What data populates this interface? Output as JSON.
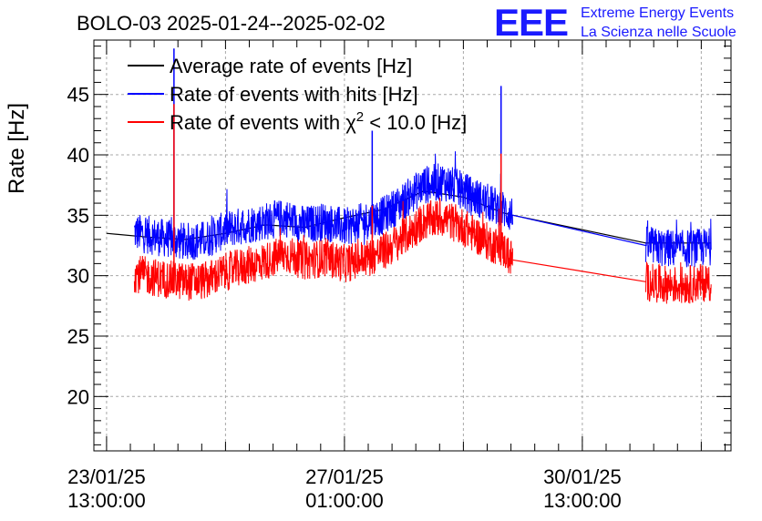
{
  "chart_data": {
    "type": "line",
    "title": "BOLO-03 2025-01-24--2025-02-02",
    "ylabel": "Rate [Hz]",
    "xlabel": "",
    "ylim": [
      15.5,
      49.5
    ],
    "yticks": [
      20,
      25,
      30,
      35,
      40,
      45
    ],
    "xlim_hours": [
      -3.2,
      157.5
    ],
    "xticks": [
      {
        "hour": 0,
        "date": "23/01/25",
        "time": "13:00:00"
      },
      {
        "hour": 60,
        "date": "27/01/25",
        "time": "01:00:00"
      },
      {
        "hour": 120,
        "date": "30/01/25",
        "time": "13:00:00"
      }
    ],
    "grid": true,
    "legend_position": "top-left",
    "series": [
      {
        "name": "Average rate of events [Hz]",
        "color": "#000000",
        "x_hours": [
          0.0,
          10.0,
          20.0,
          30.0,
          40.0,
          50.0,
          60.0,
          70.0,
          80.0,
          90.0,
          100.0,
          102.5,
          136.0,
          152.5
        ],
        "values": [
          33.5,
          33.2,
          33.0,
          33.5,
          34.2,
          34.0,
          34.8,
          35.5,
          37.0,
          36.5,
          35.2,
          35.0,
          32.7,
          32.7
        ]
      },
      {
        "name": "Rate of events with hits [Hz]",
        "color": "#0000ff",
        "x_hours": [
          7,
          13,
          20,
          25,
          30,
          35,
          40,
          45,
          50,
          55,
          60,
          65,
          70,
          75,
          80,
          85,
          90,
          95,
          100,
          102.5,
          136,
          140,
          145,
          152.5
        ],
        "values": [
          33.6,
          33.2,
          32.8,
          33.0,
          33.8,
          34.2,
          34.5,
          34.8,
          34.2,
          34.5,
          34.0,
          34.5,
          35.0,
          36.2,
          37.5,
          37.8,
          37.0,
          36.2,
          35.5,
          35.0,
          32.5,
          32.3,
          32.2,
          32.4
        ],
        "spikes": [
          {
            "hour": 17.0,
            "value": 48.8
          },
          {
            "hour": 67.0,
            "value": 42.0
          },
          {
            "hour": 99.5,
            "value": 45.7
          }
        ]
      },
      {
        "name": "Rate of events with χ² < 10.0 [Hz]",
        "color": "#ff0000",
        "x_hours": [
          7,
          13,
          20,
          25,
          30,
          35,
          40,
          45,
          50,
          55,
          60,
          65,
          70,
          75,
          80,
          85,
          90,
          95,
          100,
          102.5,
          136,
          140,
          145,
          152.5
        ],
        "values": [
          30.2,
          29.8,
          29.5,
          29.6,
          30.3,
          30.8,
          31.2,
          31.8,
          31.2,
          31.5,
          31.0,
          31.4,
          32.0,
          33.2,
          34.5,
          34.8,
          34.0,
          33.0,
          32.2,
          31.3,
          29.5,
          29.3,
          29.2,
          29.5
        ],
        "spikes": [
          {
            "hour": 17.0,
            "value": 44.2
          },
          {
            "hour": 67.0,
            "value": 35.8
          },
          {
            "hour": 99.5,
            "value": 40.1
          }
        ]
      }
    ],
    "legend": [
      {
        "label": "Average rate of events [Hz]",
        "color": "#000000"
      },
      {
        "label": "Rate of events with hits [Hz]",
        "color": "#0000ff"
      },
      {
        "label_prefix": "Rate of events with ",
        "label_symbol": "χ",
        "label_sup": "2",
        "label_suffix": " < 10.0 [Hz]",
        "color": "#ff0000"
      }
    ]
  },
  "logo": {
    "mark": "EEE",
    "line1": "Extreme Energy Events",
    "line2": "La Scienza nelle Scuole",
    "color": "#1a1aff"
  }
}
